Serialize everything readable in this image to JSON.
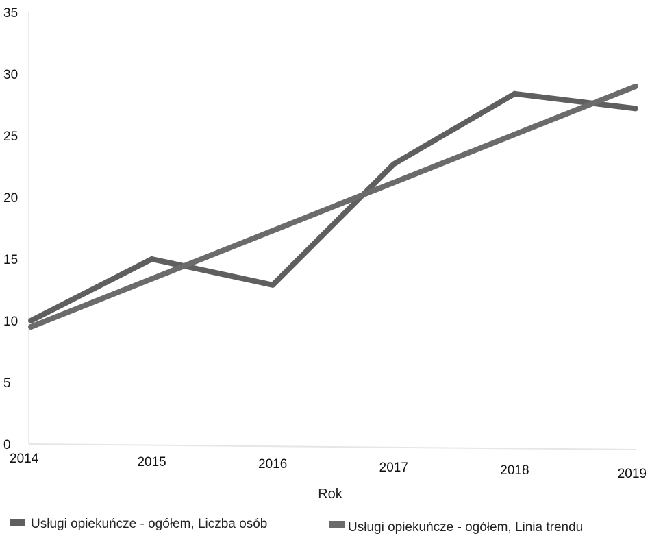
{
  "chart_data": {
    "type": "line",
    "title": "",
    "xlabel": "Rok",
    "ylabel": "",
    "categories": [
      "2014",
      "2015",
      "2016",
      "2017",
      "2018",
      "2019"
    ],
    "yticks": [
      "0",
      "5",
      "10",
      "15",
      "20",
      "25",
      "30",
      "35"
    ],
    "ylim": [
      0,
      35
    ],
    "grid": false,
    "legend_position": "bottom",
    "series": [
      {
        "name": "Usługi opiekuńcze - ogółem, Liczba osób",
        "values": [
          10,
          15,
          12.9,
          22.7,
          28.4,
          27.2
        ],
        "color": "#5f5f5f"
      },
      {
        "name": "Usługi opiekuńcze - ogółem, Linia trendu",
        "values": [
          9.5,
          13.4,
          17.3,
          21.2,
          25.1,
          29.0
        ],
        "color": "#6b6b6b"
      }
    ]
  }
}
